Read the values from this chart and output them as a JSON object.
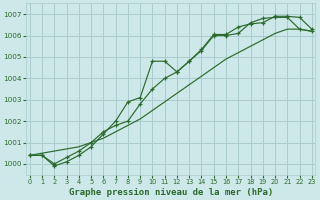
{
  "bg_color": "#cce8e8",
  "grid_color": "#aacccc",
  "line_color": "#2d6a2d",
  "xlabel": "Graphe pression niveau de la mer (hPa)",
  "xlabel_fontsize": 6.5,
  "yticks": [
    1000,
    1001,
    1002,
    1003,
    1004,
    1005,
    1006,
    1007
  ],
  "xticks": [
    0,
    1,
    2,
    3,
    4,
    5,
    6,
    7,
    8,
    9,
    10,
    11,
    12,
    13,
    14,
    15,
    16,
    17,
    18,
    19,
    20,
    21,
    22,
    23
  ],
  "ylim": [
    999.5,
    1007.5
  ],
  "xlim": [
    -0.3,
    23.3
  ],
  "series1_x": [
    0,
    1,
    2,
    3,
    4,
    5,
    6,
    7,
    8,
    9,
    10,
    11,
    12,
    13,
    14,
    15,
    16,
    17,
    18,
    19,
    20,
    21,
    22,
    23
  ],
  "series1_y": [
    1000.4,
    1000.4,
    1000.0,
    1000.3,
    1000.6,
    1001.0,
    1001.5,
    1001.8,
    1002.0,
    1002.8,
    1003.5,
    1004.0,
    1004.3,
    1004.8,
    1005.3,
    1006.0,
    1006.0,
    1006.1,
    1006.6,
    1006.8,
    1006.85,
    1006.85,
    1006.3,
    1006.2
  ],
  "series2_x": [
    0,
    1,
    2,
    3,
    4,
    5,
    6,
    7,
    8,
    9,
    10,
    11,
    12,
    13,
    14,
    15,
    16,
    17,
    18,
    19,
    20,
    21,
    22,
    23
  ],
  "series2_y": [
    1000.4,
    1000.4,
    999.9,
    1000.1,
    1000.4,
    1000.8,
    1001.4,
    1002.0,
    1002.9,
    1003.1,
    1004.8,
    1004.8,
    1004.3,
    1004.8,
    1005.35,
    1006.05,
    1006.05,
    1006.4,
    1006.55,
    1006.6,
    1006.9,
    1006.9,
    1006.85,
    1006.3
  ],
  "series3_x": [
    0,
    1,
    2,
    3,
    4,
    5,
    6,
    7,
    8,
    9,
    10,
    11,
    12,
    13,
    14,
    15,
    16,
    17,
    18,
    19,
    20,
    21,
    22,
    23
  ],
  "series3_y": [
    1000.4,
    1000.5,
    1000.6,
    1000.7,
    1000.8,
    1001.0,
    1001.2,
    1001.5,
    1001.8,
    1002.1,
    1002.5,
    1002.9,
    1003.3,
    1003.7,
    1004.1,
    1004.5,
    1004.9,
    1005.2,
    1005.5,
    1005.8,
    1006.1,
    1006.3,
    1006.3,
    1006.2
  ]
}
